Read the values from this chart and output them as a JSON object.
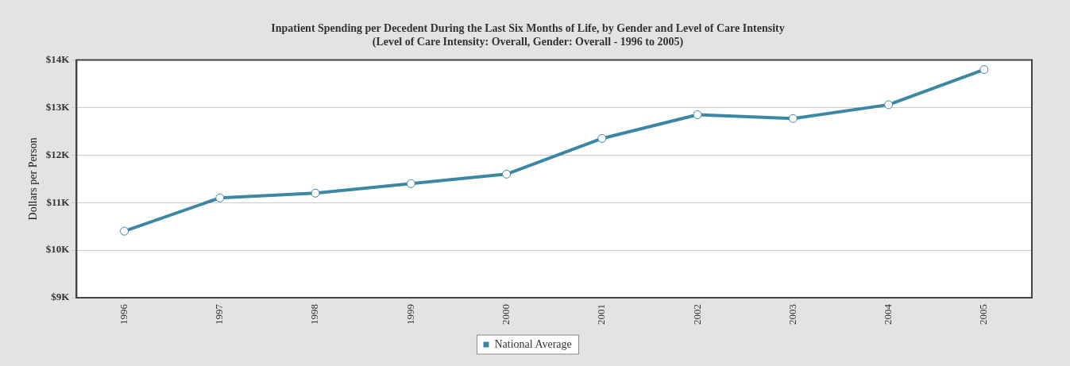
{
  "chart_data": {
    "type": "line",
    "title": "Inpatient Spending per Decedent During the Last Six Months of Life, by Gender and Level of Care Intensity",
    "subtitle": "(Level of Care Intensity: Overall, Gender: Overall - 1996 to 2005)",
    "ylabel": "Dollars per Person",
    "categories": [
      "1996",
      "1997",
      "1998",
      "1999",
      "2000",
      "2001",
      "2002",
      "2003",
      "2004",
      "2005"
    ],
    "series": [
      {
        "name": "National Average",
        "color": "#3c87a3",
        "values": [
          10400,
          11100,
          11200,
          11400,
          11600,
          12350,
          12850,
          12770,
          13060,
          13800
        ]
      }
    ],
    "ylim": [
      9000,
      14000
    ],
    "yticks": [
      {
        "value": 9000,
        "label": "$9K"
      },
      {
        "value": 10000,
        "label": "$10K"
      },
      {
        "value": 11000,
        "label": "$11K"
      },
      {
        "value": 12000,
        "label": "$12K"
      },
      {
        "value": 13000,
        "label": "$13K"
      },
      {
        "value": 14000,
        "label": "$14K"
      }
    ],
    "grid": "y",
    "legend": "bottom",
    "marker": "circle",
    "line_style": "solid"
  }
}
